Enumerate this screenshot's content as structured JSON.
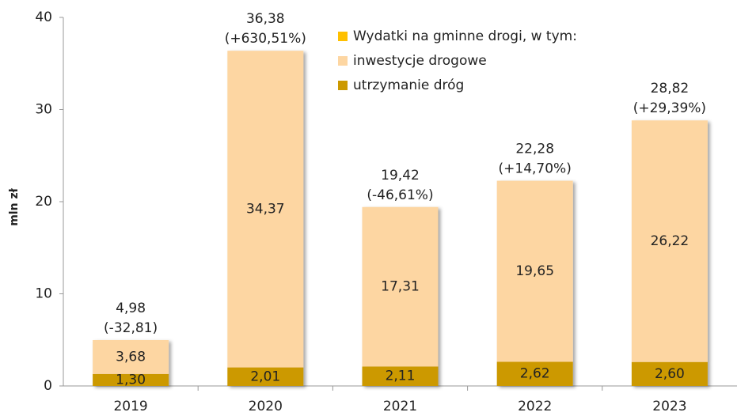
{
  "chart_data": {
    "type": "stacked_bar",
    "y_label": "mln zł",
    "categories": [
      "2019",
      "2020",
      "2021",
      "2022",
      "2023"
    ],
    "ylim": [
      0,
      40
    ],
    "yticks": [
      0,
      10,
      20,
      30,
      40
    ],
    "grid": false,
    "legend": "top",
    "total": {
      "name": "Wydatki na gminne drogi, w tym:",
      "color": "#FFC000",
      "values": [
        4.98,
        36.38,
        19.42,
        22.28,
        28.82
      ],
      "value_labels": [
        "4,98",
        "36,38",
        "19,42",
        "22,28",
        "28,82"
      ],
      "change_labels": [
        "(-32,81)",
        "(+630,51%)",
        "(-46,61%)",
        "(+14,70%)",
        "(+29,39%)"
      ]
    },
    "series": [
      {
        "name": "utrzymanie dróg",
        "color": "#CC9900",
        "values": [
          1.3,
          2.01,
          2.11,
          2.62,
          2.6
        ],
        "value_labels": [
          "1,30",
          "2,01",
          "2,11",
          "2,62",
          "2,60"
        ]
      },
      {
        "name": "inwestycje drogowe",
        "color": "#FDD6A2",
        "values": [
          3.68,
          34.37,
          17.31,
          19.65,
          26.22
        ],
        "value_labels": [
          "3,68",
          "34,37",
          "17,31",
          "19,65",
          "26,22"
        ]
      }
    ]
  }
}
